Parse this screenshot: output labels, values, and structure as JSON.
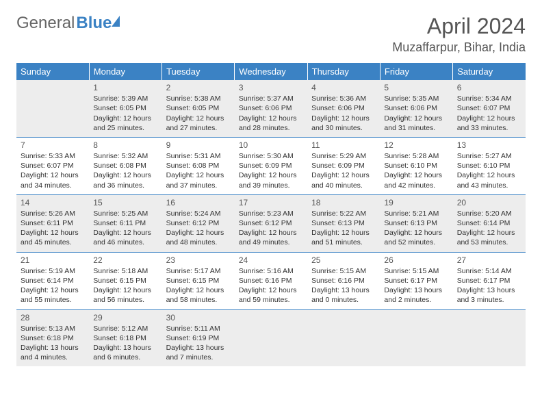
{
  "logo": {
    "part1": "General",
    "part2": "Blue"
  },
  "title": "April 2024",
  "location": "Muzaffarpur, Bihar, India",
  "colors": {
    "header_bg": "#3b82c4",
    "header_text": "#ffffff",
    "alt_row_bg": "#ededed",
    "row_bg": "#ffffff",
    "border": "#3b82c4",
    "text": "#333333",
    "title_text": "#555555"
  },
  "weekdays": [
    "Sunday",
    "Monday",
    "Tuesday",
    "Wednesday",
    "Thursday",
    "Friday",
    "Saturday"
  ],
  "weeks": [
    [
      null,
      {
        "d": "1",
        "r": "5:39 AM",
        "s": "6:05 PM",
        "l1": "Daylight: 12 hours",
        "l2": "and 25 minutes."
      },
      {
        "d": "2",
        "r": "5:38 AM",
        "s": "6:05 PM",
        "l1": "Daylight: 12 hours",
        "l2": "and 27 minutes."
      },
      {
        "d": "3",
        "r": "5:37 AM",
        "s": "6:06 PM",
        "l1": "Daylight: 12 hours",
        "l2": "and 28 minutes."
      },
      {
        "d": "4",
        "r": "5:36 AM",
        "s": "6:06 PM",
        "l1": "Daylight: 12 hours",
        "l2": "and 30 minutes."
      },
      {
        "d": "5",
        "r": "5:35 AM",
        "s": "6:06 PM",
        "l1": "Daylight: 12 hours",
        "l2": "and 31 minutes."
      },
      {
        "d": "6",
        "r": "5:34 AM",
        "s": "6:07 PM",
        "l1": "Daylight: 12 hours",
        "l2": "and 33 minutes."
      }
    ],
    [
      {
        "d": "7",
        "r": "5:33 AM",
        "s": "6:07 PM",
        "l1": "Daylight: 12 hours",
        "l2": "and 34 minutes."
      },
      {
        "d": "8",
        "r": "5:32 AM",
        "s": "6:08 PM",
        "l1": "Daylight: 12 hours",
        "l2": "and 36 minutes."
      },
      {
        "d": "9",
        "r": "5:31 AM",
        "s": "6:08 PM",
        "l1": "Daylight: 12 hours",
        "l2": "and 37 minutes."
      },
      {
        "d": "10",
        "r": "5:30 AM",
        "s": "6:09 PM",
        "l1": "Daylight: 12 hours",
        "l2": "and 39 minutes."
      },
      {
        "d": "11",
        "r": "5:29 AM",
        "s": "6:09 PM",
        "l1": "Daylight: 12 hours",
        "l2": "and 40 minutes."
      },
      {
        "d": "12",
        "r": "5:28 AM",
        "s": "6:10 PM",
        "l1": "Daylight: 12 hours",
        "l2": "and 42 minutes."
      },
      {
        "d": "13",
        "r": "5:27 AM",
        "s": "6:10 PM",
        "l1": "Daylight: 12 hours",
        "l2": "and 43 minutes."
      }
    ],
    [
      {
        "d": "14",
        "r": "5:26 AM",
        "s": "6:11 PM",
        "l1": "Daylight: 12 hours",
        "l2": "and 45 minutes."
      },
      {
        "d": "15",
        "r": "5:25 AM",
        "s": "6:11 PM",
        "l1": "Daylight: 12 hours",
        "l2": "and 46 minutes."
      },
      {
        "d": "16",
        "r": "5:24 AM",
        "s": "6:12 PM",
        "l1": "Daylight: 12 hours",
        "l2": "and 48 minutes."
      },
      {
        "d": "17",
        "r": "5:23 AM",
        "s": "6:12 PM",
        "l1": "Daylight: 12 hours",
        "l2": "and 49 minutes."
      },
      {
        "d": "18",
        "r": "5:22 AM",
        "s": "6:13 PM",
        "l1": "Daylight: 12 hours",
        "l2": "and 51 minutes."
      },
      {
        "d": "19",
        "r": "5:21 AM",
        "s": "6:13 PM",
        "l1": "Daylight: 12 hours",
        "l2": "and 52 minutes."
      },
      {
        "d": "20",
        "r": "5:20 AM",
        "s": "6:14 PM",
        "l1": "Daylight: 12 hours",
        "l2": "and 53 minutes."
      }
    ],
    [
      {
        "d": "21",
        "r": "5:19 AM",
        "s": "6:14 PM",
        "l1": "Daylight: 12 hours",
        "l2": "and 55 minutes."
      },
      {
        "d": "22",
        "r": "5:18 AM",
        "s": "6:15 PM",
        "l1": "Daylight: 12 hours",
        "l2": "and 56 minutes."
      },
      {
        "d": "23",
        "r": "5:17 AM",
        "s": "6:15 PM",
        "l1": "Daylight: 12 hours",
        "l2": "and 58 minutes."
      },
      {
        "d": "24",
        "r": "5:16 AM",
        "s": "6:16 PM",
        "l1": "Daylight: 12 hours",
        "l2": "and 59 minutes."
      },
      {
        "d": "25",
        "r": "5:15 AM",
        "s": "6:16 PM",
        "l1": "Daylight: 13 hours",
        "l2": "and 0 minutes."
      },
      {
        "d": "26",
        "r": "5:15 AM",
        "s": "6:17 PM",
        "l1": "Daylight: 13 hours",
        "l2": "and 2 minutes."
      },
      {
        "d": "27",
        "r": "5:14 AM",
        "s": "6:17 PM",
        "l1": "Daylight: 13 hours",
        "l2": "and 3 minutes."
      }
    ],
    [
      {
        "d": "28",
        "r": "5:13 AM",
        "s": "6:18 PM",
        "l1": "Daylight: 13 hours",
        "l2": "and 4 minutes."
      },
      {
        "d": "29",
        "r": "5:12 AM",
        "s": "6:18 PM",
        "l1": "Daylight: 13 hours",
        "l2": "and 6 minutes."
      },
      {
        "d": "30",
        "r": "5:11 AM",
        "s": "6:19 PM",
        "l1": "Daylight: 13 hours",
        "l2": "and 7 minutes."
      },
      null,
      null,
      null,
      null
    ]
  ]
}
